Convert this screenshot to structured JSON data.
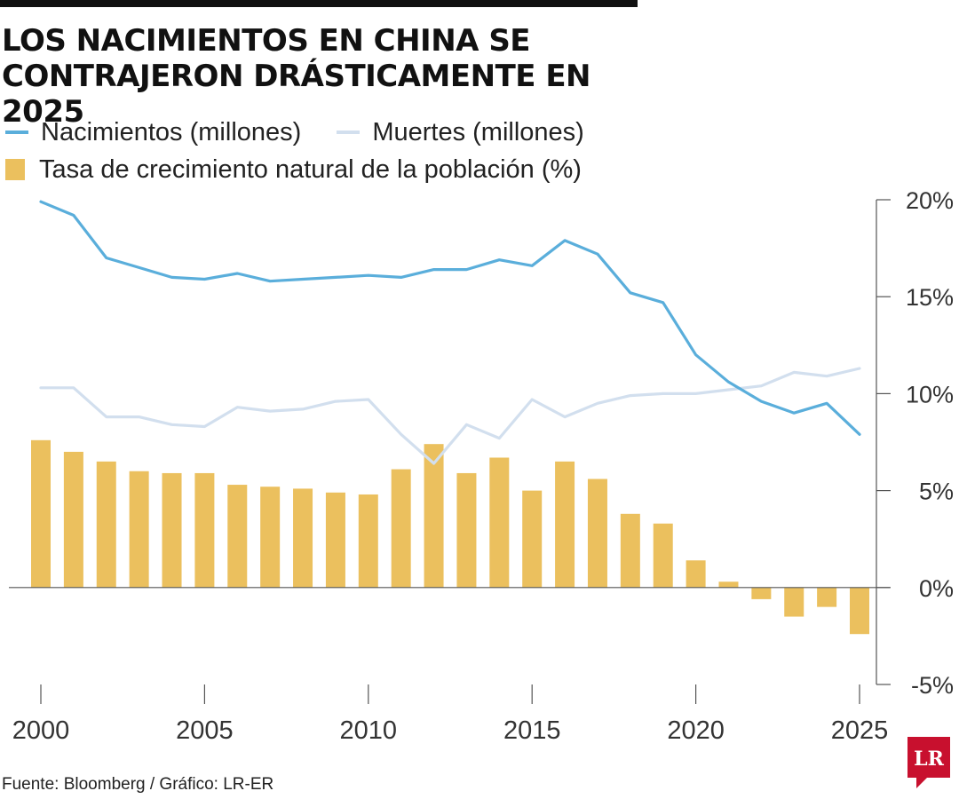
{
  "header": {
    "title": "LOS NACIMIENTOS EN CHINA SE CONTRAJERON DRÁSTICAMENTE EN 2025"
  },
  "footer": {
    "source": "Fuente: Bloomberg / Gráfico: LR-ER",
    "logo_text": "LR"
  },
  "colors": {
    "births": "#5aaedb",
    "deaths": "#d2dfee",
    "growth": "#ebc05e",
    "logo": "#c8102e"
  },
  "chart_data": {
    "type": "bar",
    "x": [
      2000,
      2001,
      2002,
      2003,
      2004,
      2005,
      2006,
      2007,
      2008,
      2009,
      2010,
      2011,
      2012,
      2013,
      2014,
      2015,
      2016,
      2017,
      2018,
      2019,
      2020,
      2021,
      2022,
      2023,
      2024,
      2025
    ],
    "x_ticks": [
      "2000",
      "2005",
      "2010",
      "2015",
      "2020",
      "2025"
    ],
    "y_ticks": [
      "20%",
      "15%",
      "10%",
      "5%",
      "0%",
      "-5%"
    ],
    "ylim": [
      -5,
      20
    ],
    "grid": false,
    "legend_position": "top-left",
    "series": [
      {
        "name": "Nacimientos (millones)",
        "type": "line",
        "values": [
          19.9,
          19.2,
          17.0,
          16.5,
          16.0,
          15.9,
          16.2,
          15.8,
          15.9,
          16.0,
          16.1,
          16.0,
          16.4,
          16.4,
          16.9,
          16.6,
          17.9,
          17.2,
          15.2,
          14.7,
          12.0,
          10.6,
          9.6,
          9.0,
          9.5,
          7.9
        ]
      },
      {
        "name": "Muertes (millones)",
        "type": "line",
        "values": [
          10.3,
          10.3,
          8.8,
          8.8,
          8.4,
          8.3,
          9.3,
          9.1,
          9.2,
          9.6,
          9.7,
          7.9,
          6.4,
          8.4,
          7.7,
          9.7,
          8.8,
          9.5,
          9.9,
          10.0,
          10.0,
          10.2,
          10.4,
          11.1,
          10.9,
          11.3
        ]
      },
      {
        "name": "Tasa de crecimiento natural de la población (%)",
        "type": "bar",
        "values": [
          7.6,
          7.0,
          6.5,
          6.0,
          5.9,
          5.9,
          5.3,
          5.2,
          5.1,
          4.9,
          4.8,
          6.1,
          7.4,
          5.9,
          6.7,
          5.0,
          6.5,
          5.6,
          3.8,
          3.3,
          1.4,
          0.3,
          -0.6,
          -1.5,
          -1.0,
          -2.4
        ]
      }
    ]
  }
}
